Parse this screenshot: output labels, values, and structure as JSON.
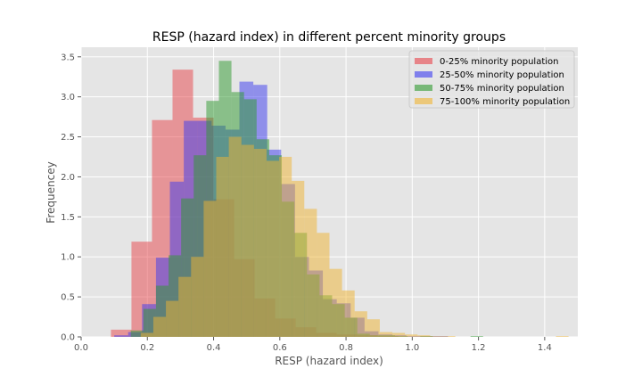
{
  "chart_data": {
    "type": "histogram",
    "title": "RESP (hazard index) in different percent minority groups",
    "xlabel": "RESP (hazard index)",
    "ylabel": "Frequencey",
    "xlim": [
      0.0,
      1.5
    ],
    "ylim": [
      0.0,
      3.62
    ],
    "x_ticks": [
      "0.0",
      "0.2",
      "0.4",
      "0.6",
      "0.8",
      "1.0",
      "1.2",
      "1.4"
    ],
    "y_ticks": [
      "0.0",
      "0.5",
      "1.0",
      "1.5",
      "2.0",
      "2.5",
      "3.0",
      "3.5"
    ],
    "grid": true,
    "legend_position": "top-right",
    "series": [
      {
        "name": "0-25% minority population",
        "color": "#e8434a",
        "bin_edges": [
          0.09,
          0.152,
          0.214,
          0.276,
          0.338,
          0.4,
          0.462,
          0.524,
          0.586,
          0.648,
          0.71,
          0.772,
          0.834,
          0.896,
          0.958,
          1.02,
          1.082,
          1.144,
          1.206,
          1.268,
          1.33
        ],
        "values": [
          0.09,
          1.19,
          2.71,
          3.34,
          2.74,
          1.72,
          0.97,
          0.48,
          0.23,
          0.12,
          0.05,
          0.03,
          0.02,
          0.01,
          0.0,
          0.0,
          0.0,
          0.0,
          0.0,
          0.0
        ]
      },
      {
        "name": "25-50% minority population",
        "color": "#3a3af0",
        "bin_edges": [
          0.1,
          0.142,
          0.184,
          0.226,
          0.268,
          0.31,
          0.352,
          0.394,
          0.436,
          0.478,
          0.52,
          0.562,
          0.604,
          0.646,
          0.688,
          0.73,
          0.772,
          0.814,
          0.856,
          0.898,
          0.94,
          0.982,
          1.024,
          1.066,
          1.108,
          1.15
        ],
        "values": [
          0.02,
          0.06,
          0.41,
          0.99,
          1.94,
          2.7,
          2.7,
          2.64,
          2.59,
          3.19,
          3.15,
          2.34,
          1.91,
          1.0,
          0.83,
          0.47,
          0.42,
          0.24,
          0.07,
          0.03,
          0.02,
          0.01,
          0.01,
          0.01,
          0.0
        ]
      },
      {
        "name": "50-75% minority population",
        "color": "#2e9a2e",
        "bin_edges": [
          0.15,
          0.188,
          0.226,
          0.264,
          0.302,
          0.34,
          0.378,
          0.416,
          0.454,
          0.492,
          0.53,
          0.568,
          0.606,
          0.644,
          0.682,
          0.72,
          0.758,
          0.796,
          0.834,
          0.872,
          0.91,
          0.948,
          0.986,
          1.024,
          1.062,
          1.1,
          1.138,
          1.176,
          1.214,
          1.252
        ],
        "values": [
          0.08,
          0.35,
          0.64,
          1.02,
          1.73,
          2.27,
          2.95,
          3.45,
          3.06,
          2.97,
          2.47,
          2.27,
          1.69,
          1.3,
          0.78,
          0.52,
          0.41,
          0.24,
          0.04,
          0.02,
          0.02,
          0.01,
          0.0,
          0.01,
          0.0,
          0.0,
          0.0,
          0.01,
          0.0
        ]
      },
      {
        "name": "75-100% minority population",
        "color": "#f0b432",
        "bin_edges": [
          0.18,
          0.218,
          0.256,
          0.294,
          0.332,
          0.37,
          0.408,
          0.446,
          0.484,
          0.522,
          0.56,
          0.598,
          0.636,
          0.674,
          0.712,
          0.75,
          0.788,
          0.826,
          0.864,
          0.902,
          0.94,
          0.978,
          1.016,
          1.054,
          1.092,
          1.13,
          1.168,
          1.206,
          1.244,
          1.282,
          1.32,
          1.358,
          1.396,
          1.434,
          1.472,
          1.51
        ],
        "values": [
          0.05,
          0.25,
          0.45,
          0.75,
          1.0,
          1.7,
          2.25,
          2.5,
          2.4,
          2.35,
          2.2,
          2.25,
          1.95,
          1.6,
          1.3,
          0.85,
          0.58,
          0.32,
          0.22,
          0.06,
          0.05,
          0.03,
          0.02,
          0.01,
          0.01,
          0.0,
          0.0,
          0.0,
          0.0,
          0.0,
          0.0,
          0.0,
          0.0,
          0.01,
          0.0
        ]
      }
    ]
  }
}
